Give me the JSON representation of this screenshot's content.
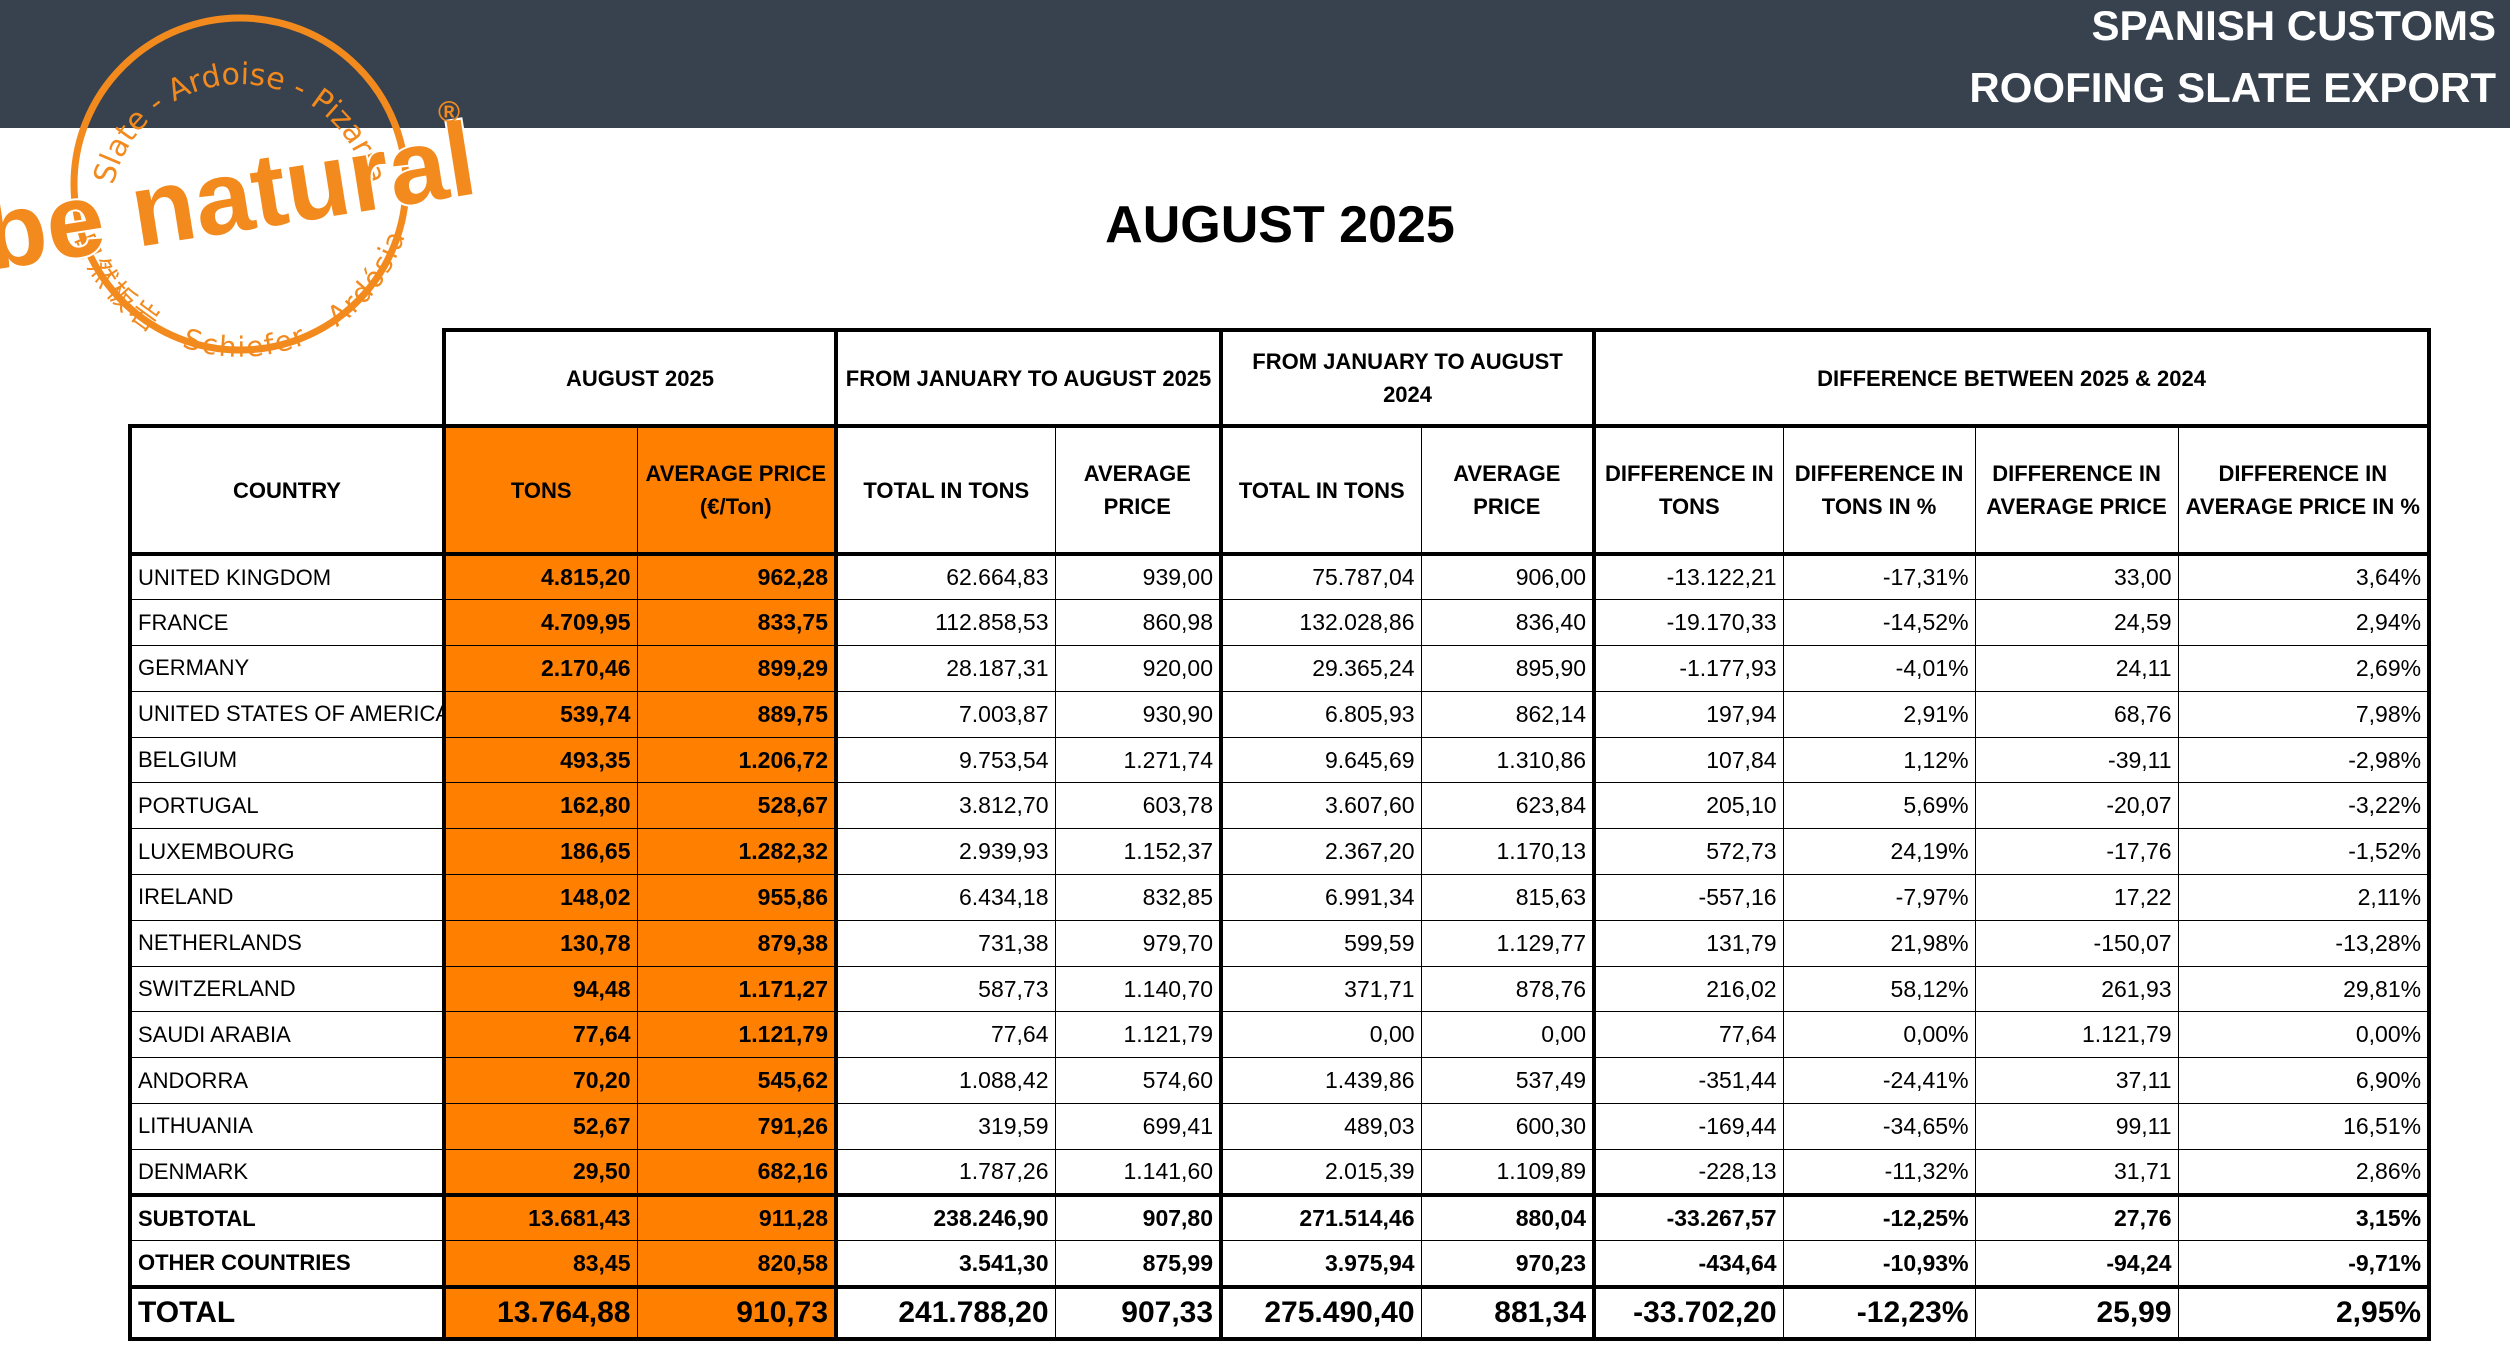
{
  "header": {
    "line1": "SPANISH CUSTOMS",
    "line2": "ROOFING SLATE EXPORT"
  },
  "logo": {
    "brand": "be natural",
    "mark": "®",
    "top_arc": "Slate - Ardoise - Pizarra",
    "bottom_arc": "自然板岩 - Schiefer - Ardósia"
  },
  "title": "AUGUST 2025",
  "table": {
    "groups": [
      "AUGUST 2025",
      "FROM JANUARY TO AUGUST 2025",
      "FROM JANUARY TO AUGUST 2024",
      "DIFFERENCE BETWEEN 2025 & 2024"
    ],
    "columns": [
      "COUNTRY",
      "TONS",
      "AVERAGE PRICE (€/Ton)",
      "TOTAL IN TONS",
      "AVERAGE PRICE",
      "TOTAL IN TONS",
      "AVERAGE PRICE",
      "DIFFERENCE IN TONS",
      "DIFFERENCE IN TONS IN %",
      "DIFFERENCE IN AVERAGE PRICE",
      "DIFFERENCE IN AVERAGE PRICE IN %"
    ],
    "rows": [
      [
        "UNITED KINGDOM",
        "4.815,20",
        "962,28",
        "62.664,83",
        "939,00",
        "75.787,04",
        "906,00",
        "-13.122,21",
        "-17,31%",
        "33,00",
        "3,64%"
      ],
      [
        "FRANCE",
        "4.709,95",
        "833,75",
        "112.858,53",
        "860,98",
        "132.028,86",
        "836,40",
        "-19.170,33",
        "-14,52%",
        "24,59",
        "2,94%"
      ],
      [
        "GERMANY",
        "2.170,46",
        "899,29",
        "28.187,31",
        "920,00",
        "29.365,24",
        "895,90",
        "-1.177,93",
        "-4,01%",
        "24,11",
        "2,69%"
      ],
      [
        "UNITED STATES OF AMERICA",
        "539,74",
        "889,75",
        "7.003,87",
        "930,90",
        "6.805,93",
        "862,14",
        "197,94",
        "2,91%",
        "68,76",
        "7,98%"
      ],
      [
        "BELGIUM",
        "493,35",
        "1.206,72",
        "9.753,54",
        "1.271,74",
        "9.645,69",
        "1.310,86",
        "107,84",
        "1,12%",
        "-39,11",
        "-2,98%"
      ],
      [
        "PORTUGAL",
        "162,80",
        "528,67",
        "3.812,70",
        "603,78",
        "3.607,60",
        "623,84",
        "205,10",
        "5,69%",
        "-20,07",
        "-3,22%"
      ],
      [
        "LUXEMBOURG",
        "186,65",
        "1.282,32",
        "2.939,93",
        "1.152,37",
        "2.367,20",
        "1.170,13",
        "572,73",
        "24,19%",
        "-17,76",
        "-1,52%"
      ],
      [
        "IRELAND",
        "148,02",
        "955,86",
        "6.434,18",
        "832,85",
        "6.991,34",
        "815,63",
        "-557,16",
        "-7,97%",
        "17,22",
        "2,11%"
      ],
      [
        "NETHERLANDS",
        "130,78",
        "879,38",
        "731,38",
        "979,70",
        "599,59",
        "1.129,77",
        "131,79",
        "21,98%",
        "-150,07",
        "-13,28%"
      ],
      [
        "SWITZERLAND",
        "94,48",
        "1.171,27",
        "587,73",
        "1.140,70",
        "371,71",
        "878,76",
        "216,02",
        "58,12%",
        "261,93",
        "29,81%"
      ],
      [
        "SAUDI ARABIA",
        "77,64",
        "1.121,79",
        "77,64",
        "1.121,79",
        "0,00",
        "0,00",
        "77,64",
        "0,00%",
        "1.121,79",
        "0,00%"
      ],
      [
        "ANDORRA",
        "70,20",
        "545,62",
        "1.088,42",
        "574,60",
        "1.439,86",
        "537,49",
        "-351,44",
        "-24,41%",
        "37,11",
        "6,90%"
      ],
      [
        "LITHUANIA",
        "52,67",
        "791,26",
        "319,59",
        "699,41",
        "489,03",
        "600,30",
        "-169,44",
        "-34,65%",
        "99,11",
        "16,51%"
      ],
      [
        "DENMARK",
        "29,50",
        "682,16",
        "1.787,26",
        "1.141,60",
        "2.015,39",
        "1.109,89",
        "-228,13",
        "-11,32%",
        "31,71",
        "2,86%"
      ]
    ],
    "subtotal": [
      "SUBTOTAL",
      "13.681,43",
      "911,28",
      "238.246,90",
      "907,80",
      "271.514,46",
      "880,04",
      "-33.267,57",
      "-12,25%",
      "27,76",
      "3,15%"
    ],
    "other": [
      "OTHER COUNTRIES",
      "83,45",
      "820,58",
      "3.541,30",
      "875,99",
      "3.975,94",
      "970,23",
      "-434,64",
      "-10,93%",
      "-94,24",
      "-9,71%"
    ],
    "total": [
      "TOTAL",
      "13.764,88",
      "910,73",
      "241.788,20",
      "907,33",
      "275.490,40",
      "881,34",
      "-33.702,20",
      "-12,23%",
      "25,99",
      "2,95%"
    ]
  }
}
